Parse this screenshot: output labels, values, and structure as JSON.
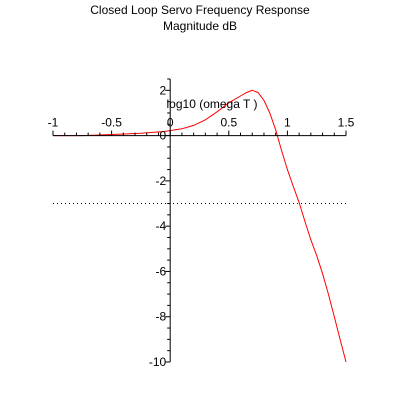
{
  "chart_data": {
    "type": "line",
    "title": "Closed Loop Servo Frequency Response",
    "subtitle": "Magnitude dB",
    "xlabel": "log10 (omega T )",
    "ylabel": "",
    "xlim": [
      -1,
      1.5
    ],
    "ylim": [
      -10,
      2.5
    ],
    "x_ticks": [
      -1,
      -0.5,
      0,
      0.5,
      1,
      1.5
    ],
    "x_tick_labels": [
      "-1",
      "-0.5",
      "0",
      "0.5",
      "1",
      "1.5"
    ],
    "y_ticks": [
      -10,
      -8,
      -6,
      -4,
      -2,
      0,
      2
    ],
    "y_tick_labels": [
      "-10",
      "-8",
      "-6",
      "-4",
      "-2",
      "0",
      "2"
    ],
    "grid": false,
    "series": [
      {
        "color": "#ff0000",
        "style": "solid",
        "x": [
          -1,
          -0.75,
          -0.5,
          -0.25,
          -0.05,
          0.1,
          0.2,
          0.3,
          0.4,
          0.5,
          0.6,
          0.65,
          0.7,
          0.75,
          0.8,
          0.85,
          0.9,
          0.95,
          1.0,
          1.05,
          1.1,
          1.15,
          1.2,
          1.25,
          1.3,
          1.35,
          1.4,
          1.45,
          1.5
        ],
        "y": [
          0.0,
          0.0,
          0.05,
          0.1,
          0.18,
          0.3,
          0.45,
          0.7,
          1.05,
          1.45,
          1.75,
          1.9,
          2.0,
          1.9,
          1.55,
          1.0,
          0.25,
          -0.65,
          -1.5,
          -2.25,
          -2.95,
          -3.8,
          -4.6,
          -5.3,
          -6.1,
          -7.0,
          -8.0,
          -9.0,
          -10.0
        ]
      },
      {
        "color": "#000000",
        "style": "dotted",
        "x": [
          -1,
          1.5
        ],
        "y": [
          -3,
          -3
        ]
      }
    ]
  }
}
